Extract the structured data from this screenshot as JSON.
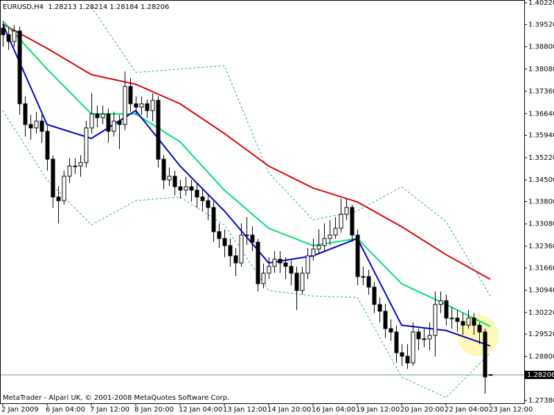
{
  "chart_data": {
    "type": "candlestick",
    "title": "EURUSD,H4  1.28213 1.28214 1.28184 1.28206",
    "footer": "MetaTrader - Alpari UK, © 2001-2008 MetaQuotes Software Corp.",
    "grid": false,
    "bull_color": "#ffffff",
    "bear_color": "#000000",
    "current_price": 1.28206,
    "current_price_color": "#6a9a9a",
    "xlim": [
      -0.5,
      94.125
    ],
    "ylim": [
      1.2729,
      1.4031
    ],
    "xticks": [
      {
        "value": 0,
        "label": "2 Jan 2009"
      },
      {
        "value": 8,
        "label": "6 Jan 04:00"
      },
      {
        "value": 16,
        "label": "7 Jan 12:00"
      },
      {
        "value": 24,
        "label": "8 Jan 20:00"
      },
      {
        "value": 32,
        "label": "12 Jan 04:00"
      },
      {
        "value": 40,
        "label": "13 Jan 12:00"
      },
      {
        "value": 48,
        "label": "14 Jan 20:00"
      },
      {
        "value": 56,
        "label": "16 Jan 04:00"
      },
      {
        "value": 64,
        "label": "19 Jan 12:00"
      },
      {
        "value": 72,
        "label": "20 Jan 20:00"
      },
      {
        "value": 80,
        "label": "22 Jan 04:00"
      },
      {
        "value": 88,
        "label": "23 Jan 12:00"
      }
    ],
    "yticks": [
      {
        "value": 1.4022,
        "label": "1.40220"
      },
      {
        "value": 1.3952,
        "label": "1.39520"
      },
      {
        "value": 1.388,
        "label": "1.38800"
      },
      {
        "value": 1.3808,
        "label": "1.38080"
      },
      {
        "value": 1.3736,
        "label": "1.37360"
      },
      {
        "value": 1.3664,
        "label": "1.36640"
      },
      {
        "value": 1.3594,
        "label": "1.35940"
      },
      {
        "value": 1.3522,
        "label": "1.35220"
      },
      {
        "value": 1.345,
        "label": "1.34500"
      },
      {
        "value": 1.338,
        "label": "1.33800"
      },
      {
        "value": 1.3308,
        "label": "1.33080"
      },
      {
        "value": 1.3236,
        "label": "1.32360"
      },
      {
        "value": 1.3166,
        "label": "1.31660"
      },
      {
        "value": 1.3094,
        "label": "1.30940"
      },
      {
        "value": 1.3022,
        "label": "1.30220"
      },
      {
        "value": 1.2952,
        "label": "1.29520"
      },
      {
        "value": 1.288,
        "label": "1.28800"
      },
      {
        "value": 1.2738,
        "label": "1.27380"
      }
    ],
    "open": [
      1.394,
      1.3919,
      1.3897,
      1.3931,
      1.3696,
      1.3629,
      1.3618,
      1.364,
      1.3607,
      1.3517,
      1.3395,
      1.3383,
      1.3462,
      1.3495,
      1.3495,
      1.3506,
      1.3618,
      1.3663,
      1.3651,
      1.3663,
      1.3607,
      1.364,
      1.3629,
      1.3752,
      1.3696,
      1.3685,
      1.3696,
      1.3674,
      1.3707,
      1.3517,
      1.345,
      1.3462,
      1.3428,
      1.3417,
      1.3428,
      1.3417,
      1.3395,
      1.3383,
      1.3361,
      1.3283,
      1.3261,
      1.3238,
      1.3205,
      1.3182,
      1.3272,
      1.3272,
      1.3249,
      1.3115,
      1.3149,
      1.3171,
      1.3194,
      1.3182,
      1.3171,
      1.3149,
      1.3093,
      1.3149,
      1.3205,
      1.3227,
      1.3238,
      1.3261,
      1.3272,
      1.3294,
      1.3339,
      1.3361,
      1.3272,
      1.3138,
      1.3138,
      1.3104,
      1.3048,
      1.3026,
      1.297,
      1.2959,
      1.2892,
      1.2881,
      1.2859,
      1.2959,
      1.2937,
      1.2937,
      1.2948,
      1.3048,
      1.306,
      1.3004,
      1.3004,
      1.2993,
      1.2981,
      1.3004,
      1.2981,
      1.2959,
      1.28213
    ],
    "high": [
      1.396,
      1.3945,
      1.395,
      1.3945,
      1.372,
      1.366,
      1.367,
      1.366,
      1.3625,
      1.353,
      1.343,
      1.348,
      1.352,
      1.352,
      1.353,
      1.364,
      1.373,
      1.369,
      1.369,
      1.368,
      1.367,
      1.366,
      1.38,
      1.378,
      1.372,
      1.372,
      1.371,
      1.373,
      1.372,
      1.353,
      1.349,
      1.348,
      1.345,
      1.346,
      1.345,
      1.344,
      1.342,
      1.34,
      1.338,
      1.331,
      1.329,
      1.326,
      1.323,
      1.331,
      1.333,
      1.33,
      1.326,
      1.318,
      1.32,
      1.322,
      1.322,
      1.32,
      1.319,
      1.317,
      1.317,
      1.323,
      1.326,
      1.329,
      1.331,
      1.332,
      1.333,
      1.339,
      1.339,
      1.337,
      1.329,
      1.317,
      1.316,
      1.312,
      1.307,
      1.305,
      1.3,
      1.298,
      1.292,
      1.292,
      1.299,
      1.297,
      1.297,
      1.299,
      1.309,
      1.309,
      1.308,
      1.304,
      1.303,
      1.302,
      1.303,
      1.302,
      1.299,
      1.297,
      1.28214
    ],
    "low": [
      1.388,
      1.387,
      1.388,
      1.366,
      1.359,
      1.358,
      1.36,
      1.357,
      1.348,
      1.336,
      1.331,
      1.337,
      1.344,
      1.347,
      1.346,
      1.349,
      1.36,
      1.362,
      1.363,
      1.357,
      1.359,
      1.355,
      1.361,
      1.367,
      1.366,
      1.366,
      1.365,
      1.364,
      1.349,
      1.342,
      1.343,
      1.34,
      1.339,
      1.34,
      1.338,
      1.336,
      1.335,
      1.332,
      1.325,
      1.323,
      1.32,
      1.317,
      1.314,
      1.317,
      1.324,
      1.322,
      1.309,
      1.31,
      1.313,
      1.315,
      1.315,
      1.313,
      1.311,
      1.303,
      1.308,
      1.313,
      1.319,
      1.321,
      1.322,
      1.324,
      1.326,
      1.328,
      1.332,
      1.325,
      1.311,
      1.311,
      1.308,
      1.302,
      1.299,
      1.294,
      1.293,
      1.286,
      1.285,
      1.284,
      1.285,
      1.29,
      1.291,
      1.29,
      1.288,
      1.302,
      1.298,
      1.297,
      1.296,
      1.295,
      1.297,
      1.295,
      1.292,
      1.276,
      1.28184
    ],
    "close": [
      1.3919,
      1.3897,
      1.3931,
      1.3696,
      1.3629,
      1.3618,
      1.364,
      1.3607,
      1.3517,
      1.3395,
      1.3383,
      1.3462,
      1.3495,
      1.3495,
      1.3506,
      1.3618,
      1.3663,
      1.3651,
      1.3663,
      1.3607,
      1.364,
      1.3629,
      1.3752,
      1.3696,
      1.3685,
      1.3696,
      1.3674,
      1.3707,
      1.3517,
      1.345,
      1.3462,
      1.3428,
      1.3417,
      1.3428,
      1.3417,
      1.3395,
      1.3383,
      1.3361,
      1.3283,
      1.3261,
      1.3238,
      1.3205,
      1.3182,
      1.3272,
      1.3272,
      1.3249,
      1.3115,
      1.3149,
      1.3171,
      1.3194,
      1.3182,
      1.3171,
      1.3149,
      1.3093,
      1.3149,
      1.3205,
      1.3227,
      1.3238,
      1.3261,
      1.3272,
      1.3294,
      1.3339,
      1.3361,
      1.3272,
      1.3138,
      1.3138,
      1.3104,
      1.3048,
      1.3026,
      1.297,
      1.2959,
      1.2892,
      1.2881,
      1.2859,
      1.2959,
      1.2937,
      1.2937,
      1.2948,
      1.3048,
      1.306,
      1.3004,
      1.3004,
      1.2993,
      1.2981,
      1.3004,
      1.2981,
      1.2959,
      1.2814,
      1.28206
    ],
    "indicator_x": [
      0,
      8,
      16,
      24,
      32,
      40,
      48,
      56,
      64,
      72,
      80,
      88
    ],
    "indicators": [
      {
        "color": "#e00000",
        "dashed": false,
        "values": [
          1.3953,
          1.3875,
          1.379,
          1.3759,
          1.3696,
          1.36,
          1.3495,
          1.3424,
          1.3379,
          1.3299,
          1.3209,
          1.3129
        ]
      },
      {
        "color": "#00e070",
        "dashed": false,
        "values": [
          1.3964,
          1.3808,
          1.3663,
          1.3663,
          1.3573,
          1.3417,
          1.3294,
          1.3238,
          1.3261,
          1.3115,
          1.3048,
          1.2977
        ]
      },
      {
        "color": "#0000c8",
        "dashed": false,
        "values": [
          1.3953,
          1.3629,
          1.3584,
          1.3674,
          1.3495,
          1.335,
          1.3182,
          1.3205,
          1.3261,
          1.2981,
          1.2964,
          1.2914
        ]
      },
      {
        "color": "#20a888",
        "dashed": true,
        "values": [
          null,
          null,
          1.4009,
          1.3797,
          1.3808,
          1.3819,
          1.3473,
          1.3321,
          1.335,
          1.3428,
          1.3316,
          1.3075
        ]
      },
      {
        "color": "#20a888",
        "dashed": true,
        "values": [
          1.3674,
          1.345,
          1.3305,
          1.3383,
          1.3395,
          1.3305,
          1.3093,
          1.3075,
          1.3071,
          1.2814,
          1.2747,
          1.2892
        ]
      }
    ]
  }
}
